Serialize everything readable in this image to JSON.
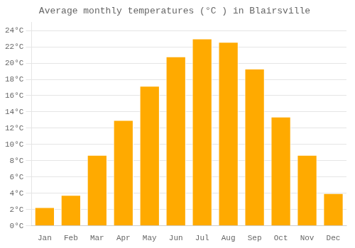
{
  "chart_data": {
    "type": "bar",
    "title": "Average monthly temperatures (°C ) in Blairsville",
    "categories": [
      "Jan",
      "Feb",
      "Mar",
      "Apr",
      "May",
      "Jun",
      "Jul",
      "Aug",
      "Sep",
      "Oct",
      "Nov",
      "Dec"
    ],
    "values": [
      2.3,
      3.8,
      8.7,
      13.0,
      17.2,
      20.8,
      23.0,
      22.6,
      19.3,
      13.4,
      8.7,
      4.0
    ],
    "color": "#FFAA00",
    "ylim": [
      0,
      25
    ],
    "yticks": [
      {
        "value": 0,
        "label": "0°C"
      },
      {
        "value": 2,
        "label": "2°C"
      },
      {
        "value": 4,
        "label": "4°C"
      },
      {
        "value": 6,
        "label": "6°C"
      },
      {
        "value": 8,
        "label": "8°C"
      },
      {
        "value": 10,
        "label": "10°C"
      },
      {
        "value": 12,
        "label": "12°C"
      },
      {
        "value": 14,
        "label": "14°C"
      },
      {
        "value": 16,
        "label": "16°C"
      },
      {
        "value": 18,
        "label": "18°C"
      },
      {
        "value": 20,
        "label": "20°C"
      },
      {
        "value": 22,
        "label": "22°C"
      },
      {
        "value": 24,
        "label": "24°C"
      }
    ],
    "grid": true
  }
}
